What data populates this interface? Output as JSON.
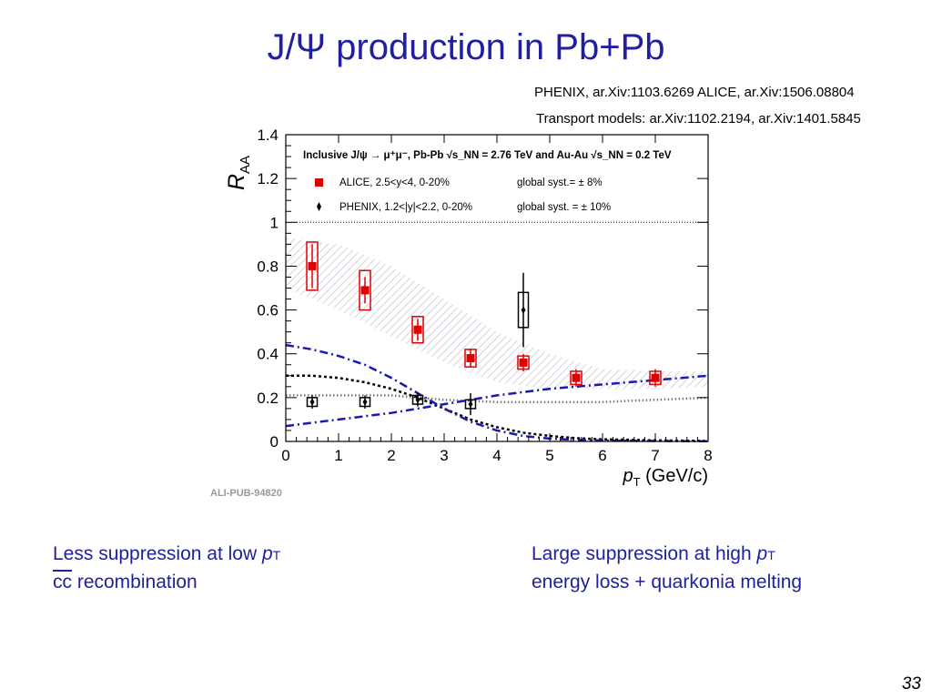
{
  "slide": {
    "title": "J/Ψ production in Pb+Pb",
    "refs": {
      "line1": "PHENIX, ar.Xiv:1103.6269  ALICE, ar.Xiv:1506.08804",
      "line2": "Transport models: ar.Xiv:1102.2194, ar.Xiv:1401.5845"
    },
    "notes": {
      "left_line1_prefix": "Less suppression at low ",
      "left_line1_var": "p",
      "left_line1_sub": "T",
      "left_cc": "cc",
      "left_line2_rest": " recombination",
      "right_line1_prefix": "Large suppression at high ",
      "right_line1_var": "p",
      "right_line1_sub": "T",
      "right_line2": "energy loss + quarkonia melting"
    },
    "page_number": "33"
  },
  "colors": {
    "title": "#1f1f9f",
    "alice": "#e00000",
    "phenix": "#000000",
    "model_blue": "#1a1ab0",
    "band": "#c8c8d8"
  },
  "chart_data": {
    "type": "scatter",
    "xlabel_var": "p",
    "xlabel_sub": "T",
    "xlabel_unit": "(GeV/c)",
    "ylabel_main": "R",
    "ylabel_sub": "AA",
    "xlim": [
      0,
      8
    ],
    "ylim": [
      0,
      1.4
    ],
    "xticks": [
      "0",
      "1",
      "2",
      "3",
      "4",
      "5",
      "6",
      "7",
      "8"
    ],
    "yticks": [
      "0",
      "0.2",
      "0.4",
      "0.6",
      "0.8",
      "1",
      "1.2",
      "1.4"
    ],
    "watermark": "ALI-PUB-94820",
    "legend_header": "Inclusive J/ψ → μ⁺μ⁻, Pb-Pb √s_NN = 2.76 TeV and Au-Au √s_NN = 0.2 TeV",
    "legend": [
      {
        "name": "ALICE, 2.5<y<4, 0-20%",
        "syst": "global syst.= ± 8%"
      },
      {
        "name": "PHENIX, 1.2<|y|<2.2, 0-20%",
        "syst": "global syst. = ± 10%"
      }
    ],
    "series": [
      {
        "name": "ALICE",
        "x": [
          0.5,
          1.5,
          2.5,
          3.5,
          4.5,
          5.5,
          7.0
        ],
        "y": [
          0.8,
          0.69,
          0.51,
          0.38,
          0.36,
          0.29,
          0.29
        ],
        "stat_err": [
          0.1,
          0.06,
          0.05,
          0.04,
          0.04,
          0.04,
          0.04
        ],
        "syst_err": [
          0.11,
          0.09,
          0.06,
          0.04,
          0.03,
          0.03,
          0.03
        ]
      },
      {
        "name": "PHENIX",
        "x": [
          0.5,
          1.5,
          2.5,
          3.5,
          4.5
        ],
        "y": [
          0.18,
          0.18,
          0.19,
          0.17,
          0.6
        ],
        "stat_err": [
          0.03,
          0.03,
          0.03,
          0.05,
          0.17
        ],
        "syst_err": [
          0.02,
          0.02,
          0.02,
          0.02,
          0.08
        ]
      }
    ],
    "models": [
      {
        "name": "band_upper",
        "x": [
          0,
          1,
          2,
          3,
          4,
          5,
          6,
          7,
          8
        ],
        "y": [
          0.93,
          0.9,
          0.8,
          0.65,
          0.5,
          0.4,
          0.33,
          0.32,
          0.32
        ]
      },
      {
        "name": "band_lower",
        "x": [
          0,
          1,
          2,
          3,
          4,
          5,
          6,
          7,
          8
        ],
        "y": [
          0.7,
          0.6,
          0.48,
          0.36,
          0.27,
          0.24,
          0.24,
          0.24,
          0.25
        ]
      },
      {
        "name": "blue_upper",
        "x": [
          0,
          0.5,
          1,
          1.5,
          2,
          2.5,
          3,
          3.5,
          4,
          4.5,
          5,
          5.5,
          6,
          6.5,
          7,
          8
        ],
        "y": [
          0.44,
          0.42,
          0.39,
          0.35,
          0.29,
          0.22,
          0.15,
          0.09,
          0.05,
          0.025,
          0.013,
          0.007,
          0.004,
          0.003,
          0.002,
          0.001
        ]
      },
      {
        "name": "blue_lower",
        "x": [
          0,
          1,
          2,
          3,
          4,
          5,
          6,
          7,
          8
        ],
        "y": [
          0.07,
          0.1,
          0.13,
          0.17,
          0.21,
          0.24,
          0.26,
          0.28,
          0.3
        ]
      },
      {
        "name": "black_dashed",
        "x": [
          0,
          0.5,
          1,
          1.5,
          2,
          2.5,
          3,
          3.5,
          4,
          4.5,
          5,
          5.5,
          6,
          7,
          8
        ],
        "y": [
          0.3,
          0.3,
          0.29,
          0.27,
          0.24,
          0.2,
          0.15,
          0.1,
          0.065,
          0.04,
          0.025,
          0.015,
          0.01,
          0.005,
          0.002
        ]
      },
      {
        "name": "gray_dotted",
        "x": [
          0,
          1,
          2,
          3,
          4,
          5,
          6,
          7,
          8
        ],
        "y": [
          0.21,
          0.21,
          0.21,
          0.19,
          0.18,
          0.18,
          0.18,
          0.19,
          0.2
        ]
      }
    ],
    "reference_line": 1.0
  }
}
